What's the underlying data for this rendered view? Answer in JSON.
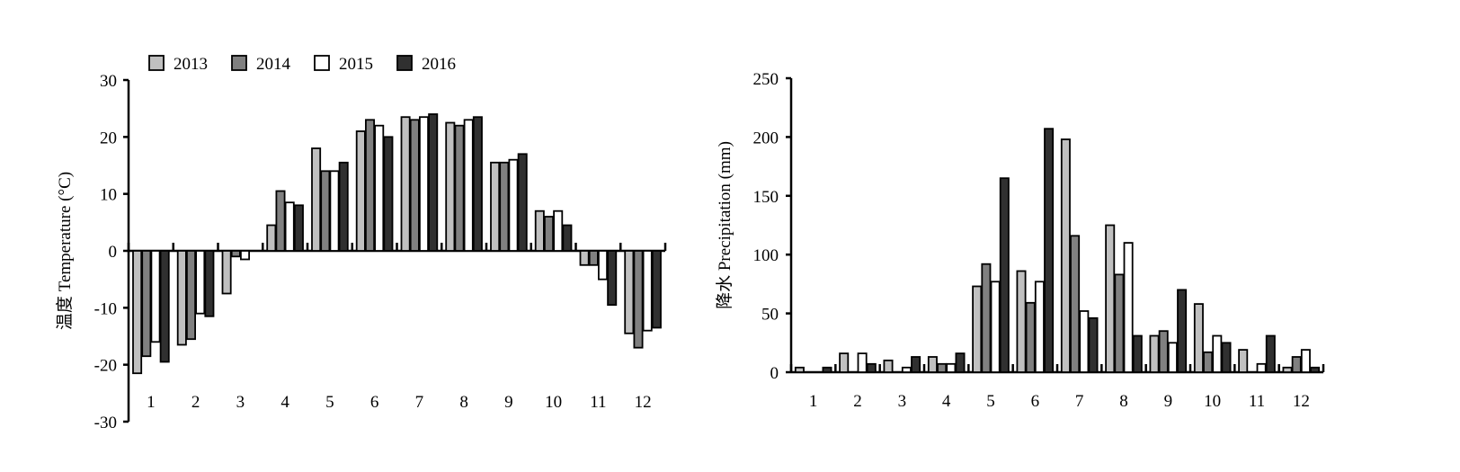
{
  "colors": {
    "2013": "#c0c0c0",
    "2014": "#808080",
    "2015": "#ffffff",
    "2016": "#303030",
    "stroke": "#000000"
  },
  "legend": [
    "2013",
    "2014",
    "2015",
    "2016"
  ],
  "chart_data": [
    {
      "type": "bar",
      "ylabel": "温度 Temperature (°C)",
      "xlabel": "",
      "ylim": [
        -30,
        30
      ],
      "yticks": [
        -30,
        -20,
        -10,
        0,
        10,
        20,
        30
      ],
      "categories": [
        "1",
        "2",
        "3",
        "4",
        "5",
        "6",
        "7",
        "8",
        "9",
        "10",
        "11",
        "12"
      ],
      "series": [
        {
          "name": "2013",
          "values": [
            -21.5,
            -16.5,
            -7.5,
            4.5,
            18.0,
            21.0,
            23.5,
            22.5,
            15.5,
            7.0,
            -2.5,
            -14.5
          ]
        },
        {
          "name": "2014",
          "values": [
            -18.5,
            -15.5,
            -1.0,
            10.5,
            14.0,
            23.0,
            23.0,
            22.0,
            15.5,
            6.0,
            -2.5,
            -17.0
          ]
        },
        {
          "name": "2015",
          "values": [
            -16.0,
            -11.0,
            -1.5,
            8.5,
            14.0,
            22.0,
            23.5,
            23.0,
            16.0,
            7.0,
            -5.0,
            -14.0
          ]
        },
        {
          "name": "2016",
          "values": [
            -19.5,
            -11.5,
            0,
            8.0,
            15.5,
            20.0,
            24.0,
            23.5,
            17.0,
            4.5,
            -9.5,
            -13.5
          ]
        }
      ]
    },
    {
      "type": "bar",
      "ylabel": "降水 Precipitation (mm)",
      "xlabel": "",
      "ylim": [
        0,
        250
      ],
      "yticks": [
        0,
        50,
        100,
        150,
        200,
        250
      ],
      "categories": [
        "1",
        "2",
        "3",
        "4",
        "5",
        "6",
        "7",
        "8",
        "9",
        "10",
        "11",
        "12"
      ],
      "series": [
        {
          "name": "2013",
          "values": [
            4,
            16,
            10,
            13,
            73,
            86,
            198,
            125,
            31,
            58,
            19,
            4
          ]
        },
        {
          "name": "2014",
          "values": [
            0,
            0,
            0,
            7,
            92,
            59,
            116,
            83,
            35,
            17,
            0,
            13
          ]
        },
        {
          "name": "2015",
          "values": [
            0,
            16,
            4,
            7,
            77,
            77,
            52,
            110,
            25,
            31,
            7,
            19
          ]
        },
        {
          "name": "2016",
          "values": [
            4,
            7,
            13,
            16,
            165,
            207,
            46,
            31,
            70,
            25,
            31,
            4
          ]
        }
      ]
    }
  ]
}
